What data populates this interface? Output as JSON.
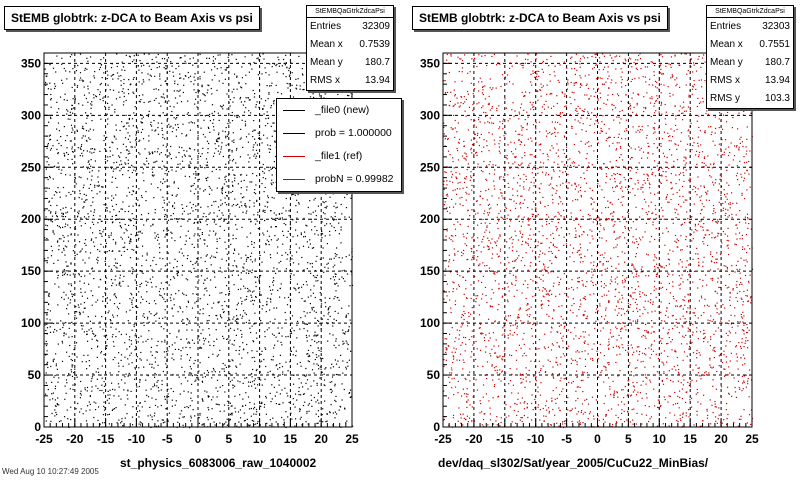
{
  "colors": {
    "left_points": "#000000",
    "right_points": "#cc0000",
    "background": "#ffffff",
    "grid": "#000000"
  },
  "panels": [
    {
      "title": "StEMB globtrk: z-DCA to Beam Axis vs psi",
      "stats_name": "StEMBQaGtrkZdcaPsi",
      "stats": [
        {
          "label": "Entries",
          "value": "32309"
        },
        {
          "label": "Mean x",
          "value": "0.7539"
        },
        {
          "label": "Mean y",
          "value": "180.7"
        },
        {
          "label": "RMS x",
          "value": "13.94"
        }
      ],
      "caption": "st_physics_6083006_raw_1040002",
      "legend": [
        {
          "label": "_file0 (new)",
          "color": "#000000"
        },
        {
          "label": "prob = 1.000000",
          "color": "#000000"
        },
        {
          "label": "_file1 (ref)",
          "color": "#cc0000"
        },
        {
          "label": "probN = 0.99982",
          "color": "#cc0000"
        }
      ]
    },
    {
      "title": "StEMB globtrk: z-DCA to Beam Axis vs psi",
      "stats_name": "StEMBQaGtrkZdcaPsi",
      "stats": [
        {
          "label": "Entries",
          "value": "32303"
        },
        {
          "label": "Mean x",
          "value": "0.7551"
        },
        {
          "label": "Mean y",
          "value": "180.7"
        },
        {
          "label": "RMS x",
          "value": "13.94"
        },
        {
          "label": "RMS y",
          "value": "103.3"
        }
      ],
      "caption": "dev/daq_sl302/Sat/year_2005/CuCu22_MinBias/"
    }
  ],
  "footer": "Wed Aug 10 10:27:49 2005",
  "chart_data": [
    {
      "type": "scatter",
      "title": "StEMB globtrk: z-DCA to Beam Axis vs psi",
      "xlabel": "",
      "ylabel": "",
      "xlim": [
        -25,
        25
      ],
      "ylim": [
        0,
        360
      ],
      "xticks": [
        -25,
        -20,
        -15,
        -10,
        -5,
        0,
        5,
        10,
        15,
        20,
        25
      ],
      "yticks": [
        0,
        50,
        100,
        150,
        200,
        250,
        300,
        350
      ],
      "grid": true,
      "distribution": "approximately uniform scatter over x in [-25,25] and y in [0,360]",
      "series": [
        {
          "name": "_file0 (new)",
          "color": "#000000",
          "count": 32309
        }
      ]
    },
    {
      "type": "scatter",
      "title": "StEMB globtrk: z-DCA to Beam Axis vs psi",
      "xlabel": "",
      "ylabel": "",
      "xlim": [
        -25,
        25
      ],
      "ylim": [
        0,
        360
      ],
      "xticks": [
        -25,
        -20,
        -15,
        -10,
        -5,
        0,
        5,
        10,
        15,
        20,
        25
      ],
      "yticks": [
        0,
        50,
        100,
        150,
        200,
        250,
        300,
        350
      ],
      "grid": true,
      "distribution": "approximately uniform scatter over x in [-25,25] and y in [0,360]",
      "series": [
        {
          "name": "_file1 (ref)",
          "color": "#cc0000",
          "count": 32303
        }
      ]
    }
  ]
}
